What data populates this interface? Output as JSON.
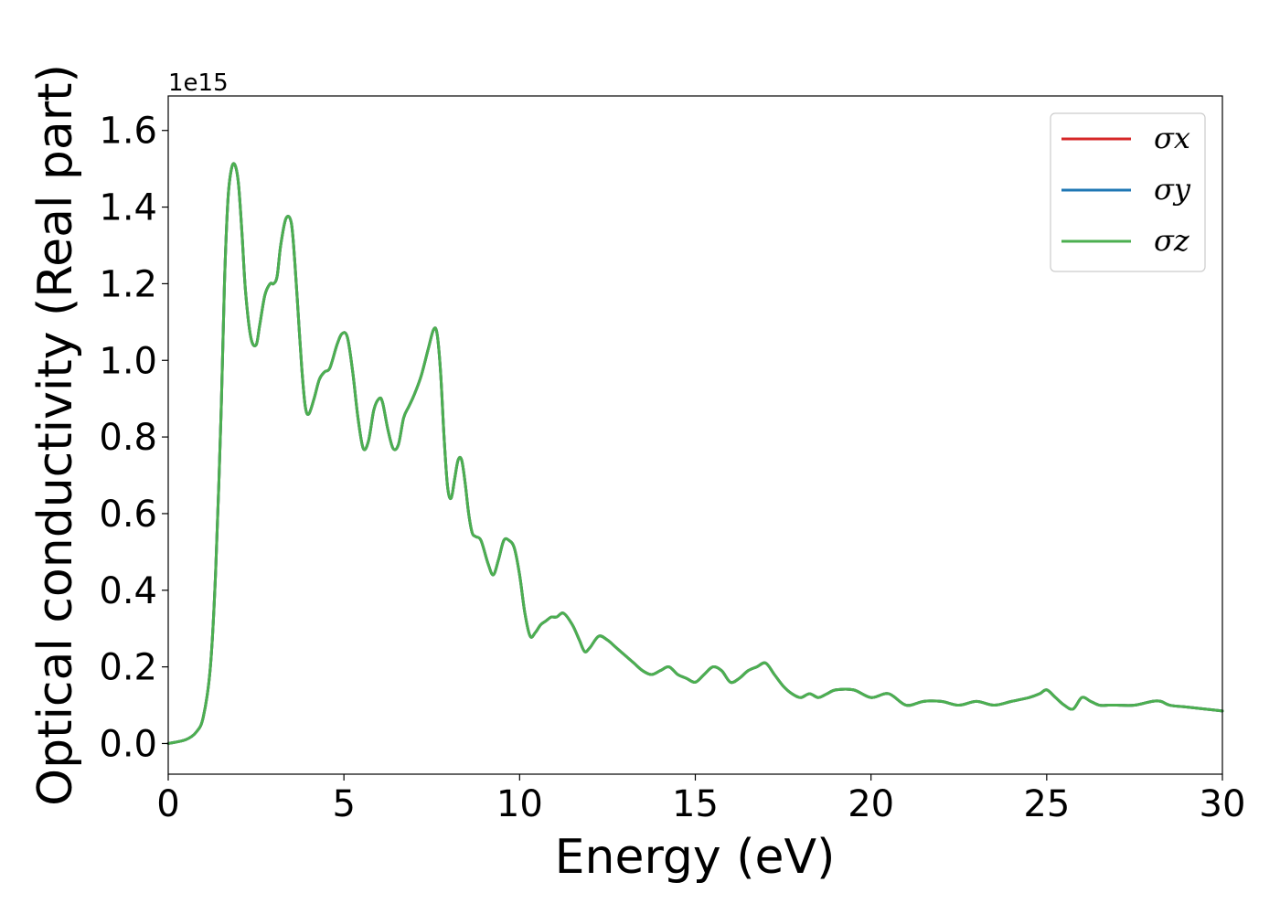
{
  "chart_data": {
    "type": "line",
    "title": "",
    "xlabel": "Energy (eV)",
    "ylabel": "Optical conductivity (Real part)",
    "y_offset_label": "1e15",
    "xlim": [
      0,
      30
    ],
    "ylim": [
      -0.08,
      1.69
    ],
    "xticks": [
      0,
      5,
      10,
      15,
      20,
      25,
      30
    ],
    "xtick_labels": [
      "0",
      "5",
      "10",
      "15",
      "20",
      "25",
      "30"
    ],
    "yticks": [
      0.0,
      0.2,
      0.4,
      0.6,
      0.8,
      1.0,
      1.2,
      1.4,
      1.6
    ],
    "ytick_labels": [
      "0.0",
      "0.2",
      "0.4",
      "0.6",
      "0.8",
      "1.0",
      "1.2",
      "1.4",
      "1.6"
    ],
    "grid": false,
    "legend_position": "top-right",
    "x": [
      0,
      0.5,
      0.8,
      1.0,
      1.2,
      1.35,
      1.5,
      1.6,
      1.7,
      1.8,
      1.9,
      2.0,
      2.1,
      2.2,
      2.35,
      2.5,
      2.6,
      2.75,
      2.9,
      3.0,
      3.1,
      3.2,
      3.35,
      3.5,
      3.6,
      3.7,
      3.8,
      3.9,
      4.0,
      4.15,
      4.3,
      4.45,
      4.6,
      4.8,
      4.95,
      5.1,
      5.25,
      5.4,
      5.55,
      5.7,
      5.85,
      6.0,
      6.1,
      6.25,
      6.4,
      6.55,
      6.7,
      6.85,
      7.0,
      7.2,
      7.4,
      7.55,
      7.65,
      7.75,
      7.85,
      7.95,
      8.05,
      8.15,
      8.25,
      8.35,
      8.45,
      8.55,
      8.65,
      8.75,
      8.9,
      9.1,
      9.25,
      9.4,
      9.55,
      9.7,
      9.85,
      10.0,
      10.15,
      10.3,
      10.45,
      10.6,
      10.75,
      10.9,
      11.05,
      11.25,
      11.5,
      11.7,
      11.85,
      12.0,
      12.25,
      12.5,
      12.75,
      13.0,
      13.25,
      13.5,
      13.75,
      14.0,
      14.25,
      14.5,
      14.75,
      15.0,
      15.25,
      15.5,
      15.75,
      16.0,
      16.25,
      16.5,
      16.75,
      17.0,
      17.25,
      17.5,
      17.75,
      18.0,
      18.25,
      18.5,
      18.75,
      19.0,
      19.5,
      20.0,
      20.5,
      21.0,
      21.5,
      22.0,
      22.5,
      23.0,
      23.5,
      24.0,
      24.5,
      24.8,
      25.0,
      25.25,
      25.5,
      25.75,
      26.0,
      26.25,
      26.5,
      26.75,
      27.0,
      27.5,
      28.0,
      28.25,
      28.5,
      29.0,
      29.5,
      30.0
    ],
    "series": [
      {
        "name": "σx",
        "color": "#d62728",
        "values": "same_as_sigma_z"
      },
      {
        "name": "σy",
        "color": "#1f77b4",
        "values": "same_as_sigma_z"
      },
      {
        "name": "σz",
        "color": "#4caf50",
        "values": [
          0.0,
          0.01,
          0.03,
          0.07,
          0.2,
          0.45,
          0.85,
          1.2,
          1.42,
          1.5,
          1.51,
          1.46,
          1.33,
          1.18,
          1.06,
          1.04,
          1.09,
          1.17,
          1.2,
          1.2,
          1.22,
          1.3,
          1.37,
          1.36,
          1.26,
          1.12,
          0.98,
          0.88,
          0.86,
          0.9,
          0.95,
          0.97,
          0.98,
          1.04,
          1.07,
          1.06,
          0.97,
          0.85,
          0.77,
          0.79,
          0.87,
          0.9,
          0.89,
          0.82,
          0.77,
          0.78,
          0.85,
          0.88,
          0.91,
          0.96,
          1.03,
          1.08,
          1.07,
          0.97,
          0.8,
          0.67,
          0.64,
          0.69,
          0.74,
          0.74,
          0.68,
          0.6,
          0.55,
          0.54,
          0.53,
          0.47,
          0.44,
          0.48,
          0.53,
          0.53,
          0.51,
          0.44,
          0.34,
          0.28,
          0.29,
          0.31,
          0.32,
          0.33,
          0.33,
          0.34,
          0.31,
          0.27,
          0.24,
          0.25,
          0.28,
          0.27,
          0.25,
          0.23,
          0.21,
          0.19,
          0.18,
          0.19,
          0.2,
          0.18,
          0.17,
          0.16,
          0.18,
          0.2,
          0.19,
          0.16,
          0.17,
          0.19,
          0.2,
          0.21,
          0.18,
          0.15,
          0.13,
          0.12,
          0.13,
          0.12,
          0.13,
          0.14,
          0.14,
          0.12,
          0.13,
          0.1,
          0.11,
          0.11,
          0.1,
          0.11,
          0.1,
          0.11,
          0.12,
          0.13,
          0.14,
          0.12,
          0.1,
          0.09,
          0.12,
          0.11,
          0.1,
          0.1,
          0.1,
          0.1,
          0.11,
          0.11,
          0.1,
          0.095,
          0.09,
          0.085
        ]
      }
    ]
  }
}
